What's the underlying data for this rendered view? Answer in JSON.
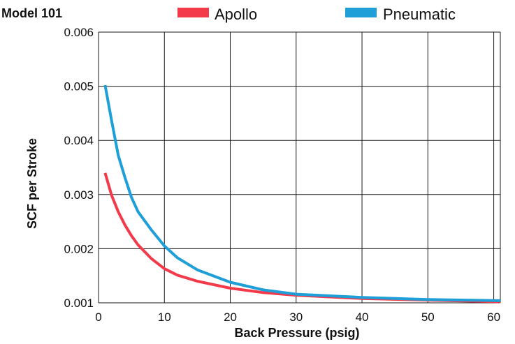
{
  "chart_data": {
    "type": "line",
    "title": "Model 101",
    "xlabel": "Back Pressure (psig)",
    "ylabel": "SCF per Stroke",
    "xlim": [
      0,
      61
    ],
    "ylim": [
      0.001,
      0.006
    ],
    "xticks": [
      0,
      10,
      20,
      30,
      40,
      50,
      60
    ],
    "yticks": [
      0.001,
      0.002,
      0.003,
      0.004,
      0.005,
      0.006
    ],
    "xtick_labels": [
      "0",
      "10",
      "20",
      "30",
      "40",
      "50",
      "60"
    ],
    "ytick_labels": [
      "0.001",
      "0.002",
      "0.003",
      "0.004",
      "0.005",
      "0.006"
    ],
    "grid": true,
    "legend_position": "top",
    "series": [
      {
        "name": "Apollo",
        "color": "#f23a4a",
        "x": [
          1,
          2,
          3,
          4,
          5,
          6,
          8,
          10,
          12,
          15,
          20,
          25,
          30,
          40,
          50,
          61
        ],
        "y": [
          0.0034,
          0.00298,
          0.00268,
          0.00244,
          0.00224,
          0.00207,
          0.00182,
          0.00163,
          0.00151,
          0.0014,
          0.00127,
          0.00119,
          0.00114,
          0.00108,
          0.00105,
          0.00102
        ]
      },
      {
        "name": "Pneumatic",
        "color": "#1e9fd8",
        "x": [
          1,
          2,
          3,
          4,
          5,
          6,
          8,
          10,
          12,
          15,
          20,
          25,
          30,
          40,
          50,
          61
        ],
        "y": [
          0.00502,
          0.00435,
          0.00372,
          0.00332,
          0.00295,
          0.00268,
          0.00235,
          0.00205,
          0.00183,
          0.00161,
          0.00138,
          0.00124,
          0.00116,
          0.0011,
          0.00106,
          0.00104
        ]
      }
    ]
  }
}
